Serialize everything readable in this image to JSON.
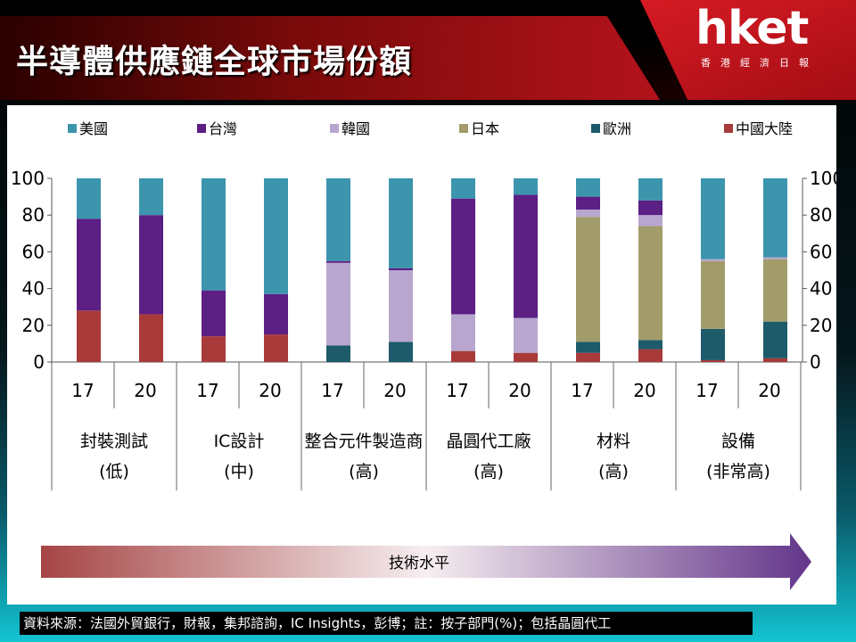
{
  "title": "半導體供應鏈全球市場份額",
  "logo": {
    "text": "hket",
    "subtitle": "香港經濟日報"
  },
  "source": "資料來源：法國外貿銀行，財報，集邦諮詢，IC Insights，彭博；註：按子部門(%)；包括晶圓代工",
  "tech_arrow_label": "技術水平",
  "colors": {
    "美國": "#3c95ad",
    "台灣": "#5c1f84",
    "韓國": "#b8a6cf",
    "日本": "#a29c6a",
    "歐洲": "#1d5a6a",
    "中國大陸": "#a83a3a"
  },
  "chart_data": {
    "type": "bar",
    "stacked": true,
    "ylim": [
      0,
      100
    ],
    "yticks": [
      0,
      20,
      40,
      60,
      80,
      100
    ],
    "legend_position": "top",
    "years": [
      "17",
      "20"
    ],
    "groups": [
      {
        "label": "封裝測試",
        "level": "(低)"
      },
      {
        "label": "IC設計",
        "level": "(中)"
      },
      {
        "label": "整合元件製造商",
        "level": "(高)"
      },
      {
        "label": "晶圓代工廠",
        "level": "(高)"
      },
      {
        "label": "材料",
        "level": "(高)"
      },
      {
        "label": "設備",
        "level": "(非常高)"
      }
    ],
    "categories": [
      "17",
      "20",
      "17",
      "20",
      "17",
      "20",
      "17",
      "20",
      "17",
      "20",
      "17",
      "20"
    ],
    "series": [
      {
        "name": "中國大陸",
        "values": [
          28,
          26,
          14,
          15,
          0,
          0,
          6,
          5,
          5,
          7,
          1,
          2
        ]
      },
      {
        "name": "歐洲",
        "values": [
          0,
          0,
          0,
          0,
          9,
          11,
          0,
          0,
          6,
          5,
          17,
          20
        ]
      },
      {
        "name": "日本",
        "values": [
          0,
          0,
          0,
          0,
          0,
          0,
          0,
          0,
          68,
          62,
          37,
          34
        ]
      },
      {
        "name": "韓國",
        "values": [
          0,
          0,
          0,
          0,
          45,
          39,
          20,
          19,
          4,
          6,
          1,
          1
        ]
      },
      {
        "name": "台灣",
        "values": [
          50,
          54,
          25,
          22,
          1,
          1,
          63,
          67,
          7,
          8,
          0,
          0
        ]
      },
      {
        "name": "美國",
        "values": [
          22,
          20,
          61,
          63,
          45,
          49,
          11,
          9,
          10,
          12,
          44,
          43
        ]
      }
    ]
  }
}
